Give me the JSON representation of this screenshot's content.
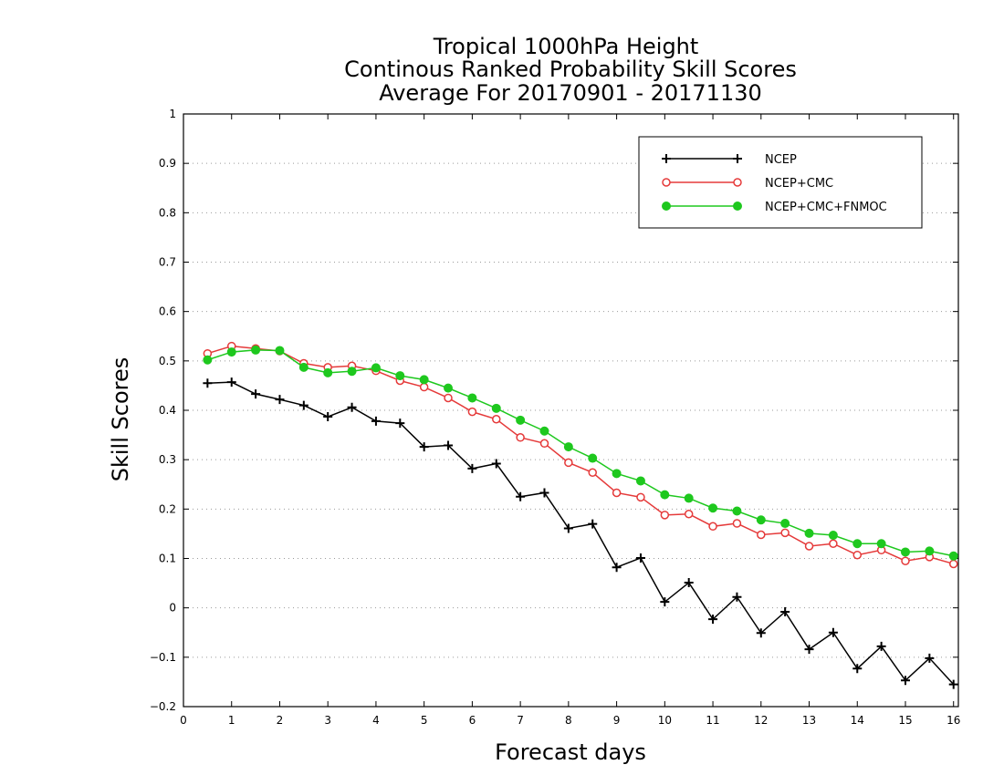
{
  "chart_data": {
    "type": "line",
    "title_lines": [
      "Tropical 1000hPa Height",
      "Continous Ranked Probability Skill Scores",
      "Average For 20170901 - 20171130"
    ],
    "xlabel": "Forecast days",
    "ylabel": "Skill Scores",
    "xlim": [
      0,
      16.1
    ],
    "ylim": [
      -0.2,
      1.0
    ],
    "xticks": [
      "0",
      "1",
      "2",
      "3",
      "4",
      "5",
      "6",
      "7",
      "8",
      "9",
      "10",
      "11",
      "12",
      "13",
      "14",
      "15",
      "16"
    ],
    "yticks": [
      "−0.2",
      "−0.1",
      "0",
      "0.1",
      "0.2",
      "0.3",
      "0.4",
      "0.5",
      "0.6",
      "0.7",
      "0.8",
      "0.9",
      "1"
    ],
    "grid": true,
    "legend_position": "top-right",
    "x": [
      0.5,
      1,
      1.5,
      2,
      2.5,
      3,
      3.5,
      4,
      4.5,
      5,
      5.5,
      6,
      6.5,
      7,
      7.5,
      8,
      8.5,
      9,
      9.5,
      10,
      10.5,
      11,
      11.5,
      12,
      12.5,
      13,
      13.5,
      14,
      14.5,
      15,
      15.5,
      16
    ],
    "series": [
      {
        "name": "NCEP",
        "color": "#000000",
        "marker": "plus",
        "values": [
          0.455,
          0.457,
          0.433,
          0.422,
          0.41,
          0.387,
          0.406,
          0.378,
          0.374,
          0.326,
          0.329,
          0.282,
          0.292,
          0.225,
          0.233,
          0.161,
          0.17,
          0.082,
          0.101,
          0.012,
          0.051,
          -0.023,
          0.022,
          -0.051,
          -0.008,
          -0.084,
          -0.05,
          -0.123,
          -0.078,
          -0.147,
          -0.102,
          -0.155
        ]
      },
      {
        "name": "NCEP+CMC",
        "color": "#e53a3a",
        "marker": "open-circle",
        "values": [
          0.515,
          0.53,
          0.525,
          0.52,
          0.495,
          0.487,
          0.49,
          0.48,
          0.46,
          0.447,
          0.425,
          0.397,
          0.382,
          0.345,
          0.333,
          0.294,
          0.274,
          0.233,
          0.224,
          0.188,
          0.19,
          0.165,
          0.171,
          0.148,
          0.152,
          0.125,
          0.13,
          0.107,
          0.117,
          0.095,
          0.103,
          0.089
        ]
      },
      {
        "name": "NCEP+CMC+FNMOC",
        "color": "#1ec81e",
        "marker": "filled-circle",
        "values": [
          0.502,
          0.518,
          0.522,
          0.521,
          0.487,
          0.476,
          0.479,
          0.486,
          0.47,
          0.462,
          0.445,
          0.425,
          0.404,
          0.38,
          0.358,
          0.326,
          0.303,
          0.272,
          0.257,
          0.229,
          0.222,
          0.202,
          0.196,
          0.178,
          0.171,
          0.151,
          0.147,
          0.13,
          0.13,
          0.113,
          0.115,
          0.105
        ]
      }
    ]
  }
}
